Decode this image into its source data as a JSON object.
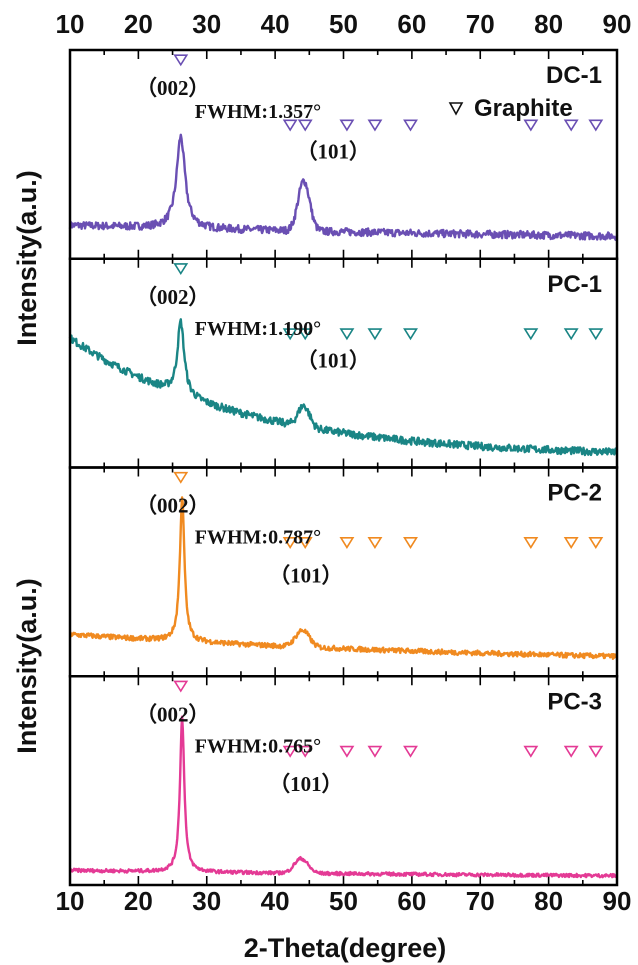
{
  "chart_data": {
    "type": "line",
    "xlabel": "2-Theta(degree)",
    "ylabel": "Intensity(a.u.)",
    "xlim": [
      10,
      90
    ],
    "x_ticks": [
      "10",
      "20",
      "30",
      "40",
      "50",
      "60",
      "70",
      "80",
      "90"
    ],
    "legend": {
      "symbol": "▽",
      "label": "Graphite",
      "placement": "top-right"
    },
    "reference_peaks": [
      26.2,
      42.2,
      44.4,
      50.5,
      54.6,
      59.8,
      77.4,
      83.3,
      86.9
    ],
    "panels": [
      {
        "name": "DC-1",
        "color": "#6a4fb3",
        "fwhm": "FWHM:1.357°",
        "label_002": "（002）",
        "label_101": "（101）",
        "profile": {
          "start": 0.16,
          "end": 0.07,
          "decay": 0.85,
          "p002_x": 26.2,
          "p002_h": 0.44,
          "p002_w": 0.75,
          "p101_x": 44.2,
          "p101_h": 0.24,
          "p101_w": 1.2,
          "noise": 0.018
        }
      },
      {
        "name": "PC-1",
        "color": "#1a8585",
        "fwhm": "FWHM:1.190°",
        "label_002": "（002）",
        "label_101": "（101）",
        "profile": {
          "start": 0.62,
          "end": 0.05,
          "decay": 3.2,
          "p002_x": 26.2,
          "p002_h": 0.35,
          "p002_w": 0.6,
          "p101_x": 44.2,
          "p101_h": 0.1,
          "p101_w": 1.2,
          "noise": 0.018
        }
      },
      {
        "name": "PC-2",
        "color": "#f08a20",
        "fwhm": "FWHM:0.787°",
        "label_002": "（002）",
        "label_101": "（101）",
        "profile": {
          "start": 0.2,
          "end": 0.05,
          "decay": 1.2,
          "p002_x": 26.4,
          "p002_h": 0.69,
          "p002_w": 0.4,
          "p101_x": 44.0,
          "p101_h": 0.08,
          "p101_w": 1.4,
          "noise": 0.012
        }
      },
      {
        "name": "PC-3",
        "color": "#e43a95",
        "fwhm": "FWHM:0.765°",
        "label_002": "（002）",
        "label_101": "（101）",
        "profile": {
          "start": 0.07,
          "end": 0.03,
          "decay": 1.0,
          "p002_x": 26.4,
          "p002_h": 0.74,
          "p002_w": 0.38,
          "p101_x": 43.8,
          "p101_h": 0.07,
          "p101_w": 1.4,
          "noise": 0.008
        }
      }
    ]
  }
}
